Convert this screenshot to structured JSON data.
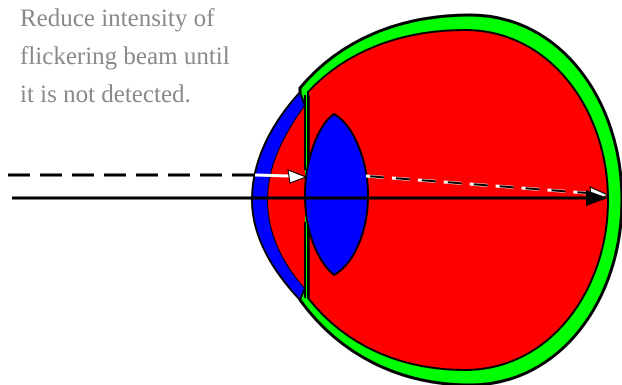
{
  "caption": {
    "lines": [
      "Reduce intensity of",
      "flickering beam until",
      "it is not detected."
    ]
  },
  "colors": {
    "sclera": "#00ff00",
    "eye_interior": "#ff0000",
    "cornea": "#0000ff",
    "lens": "#0000ff",
    "outline": "#000000",
    "caption_text": "#8a8a8a",
    "flicker_beam_inside_eye": "#ffffff",
    "steady_beam": "#000000"
  },
  "icons": {
    "eye": "eye-cross-section-icon",
    "lens": "lens-icon",
    "cornea": "cornea-icon",
    "arrowhead": "arrowhead-icon"
  }
}
